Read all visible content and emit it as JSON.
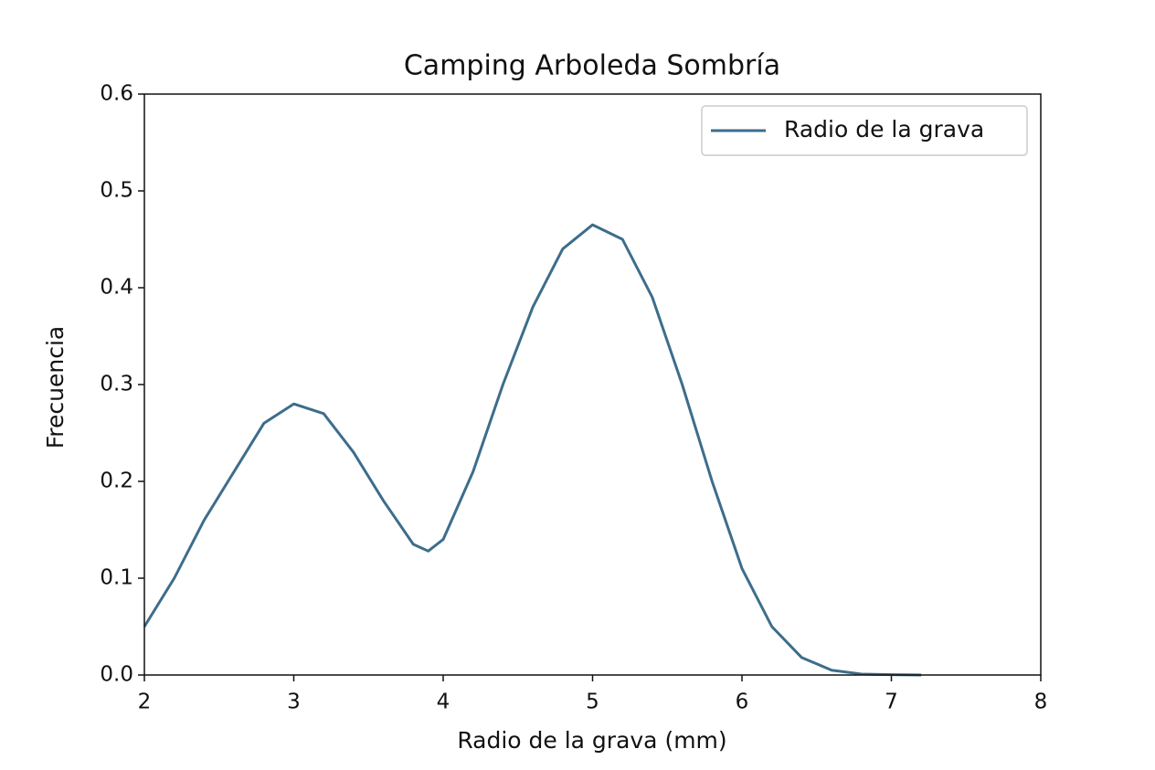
{
  "chart_data": {
    "type": "line",
    "title": "Camping Arboleda Sombría",
    "x_label": "Radio de la grava (mm)",
    "y_label": "Frecuencia",
    "x": [
      2.0,
      2.2,
      2.4,
      2.6,
      2.8,
      3.0,
      3.2,
      3.4,
      3.6,
      3.8,
      3.9,
      4.0,
      4.2,
      4.4,
      4.6,
      4.8,
      5.0,
      5.2,
      5.4,
      5.6,
      5.8,
      6.0,
      6.2,
      6.4,
      6.6,
      6.8,
      7.0,
      7.2
    ],
    "series": [
      {
        "name": "Radio de la grava",
        "color": "#3d6d8b",
        "values": [
          0.05,
          0.1,
          0.16,
          0.21,
          0.26,
          0.28,
          0.27,
          0.23,
          0.18,
          0.135,
          0.128,
          0.14,
          0.21,
          0.3,
          0.38,
          0.44,
          0.465,
          0.45,
          0.39,
          0.3,
          0.2,
          0.11,
          0.05,
          0.018,
          0.005,
          0.001,
          0.0003,
          0
        ]
      }
    ],
    "xlim": [
      2,
      8
    ],
    "ylim": [
      0,
      0.6
    ],
    "xticks": [
      2,
      3,
      4,
      5,
      6,
      7,
      8
    ],
    "yticks": [
      {
        "value": 0,
        "label": "0.0"
      },
      0.1,
      0.2,
      0.3,
      0.4,
      0.5,
      0.6
    ],
    "legend": "upper right"
  }
}
